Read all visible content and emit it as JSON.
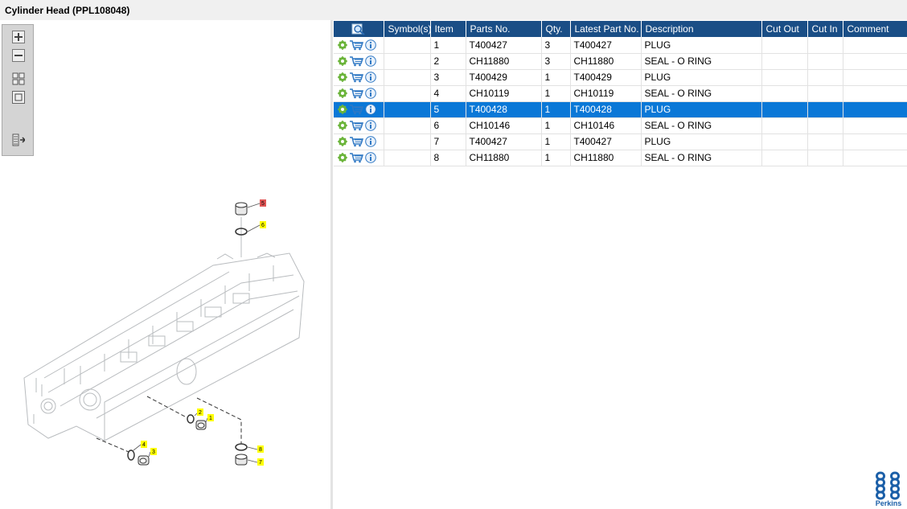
{
  "window": {
    "title": "Cylinder Head (PPL108048)"
  },
  "toolbar": {
    "buttons": [
      {
        "name": "zoom-in-icon"
      },
      {
        "name": "zoom-out-icon"
      },
      {
        "name": "fit-all-icon"
      },
      {
        "name": "fit-window-icon"
      },
      {
        "name": "export-list-icon"
      }
    ]
  },
  "grid": {
    "columns": [
      "",
      "Symbol(s)",
      "Item",
      "Parts No.",
      "Qty.",
      "Latest Part No.",
      "Description",
      "Cut Out",
      "Cut In",
      "Comment"
    ],
    "selected_index": 4,
    "rows": [
      {
        "item": "1",
        "part_no": "T400427",
        "qty": "3",
        "latest": "T400427",
        "desc": "PLUG"
      },
      {
        "item": "2",
        "part_no": "CH11880",
        "qty": "3",
        "latest": "CH11880",
        "desc": "SEAL - O RING"
      },
      {
        "item": "3",
        "part_no": "T400429",
        "qty": "1",
        "latest": "T400429",
        "desc": "PLUG"
      },
      {
        "item": "4",
        "part_no": "CH10119",
        "qty": "1",
        "latest": "CH10119",
        "desc": "SEAL - O RING"
      },
      {
        "item": "5",
        "part_no": "T400428",
        "qty": "1",
        "latest": "T400428",
        "desc": "PLUG"
      },
      {
        "item": "6",
        "part_no": "CH10146",
        "qty": "1",
        "latest": "CH10146",
        "desc": "SEAL - O RING"
      },
      {
        "item": "7",
        "part_no": "T400427",
        "qty": "1",
        "latest": "T400427",
        "desc": "PLUG"
      },
      {
        "item": "8",
        "part_no": "CH11880",
        "qty": "1",
        "latest": "CH11880",
        "desc": "SEAL - O RING"
      }
    ]
  },
  "diagram": {
    "callouts": [
      {
        "label": "1",
        "highlight": false
      },
      {
        "label": "2",
        "highlight": false
      },
      {
        "label": "3",
        "highlight": false
      },
      {
        "label": "4",
        "highlight": false
      },
      {
        "label": "5",
        "highlight": true
      },
      {
        "label": "6",
        "highlight": false
      },
      {
        "label": "7",
        "highlight": false
      },
      {
        "label": "8",
        "highlight": false
      }
    ]
  },
  "logo": {
    "text": "Perkins"
  },
  "colors": {
    "header": "#1a4e86",
    "selected": "#0a78d7",
    "callout": "#ffff00",
    "callout_active": "#e05555"
  }
}
